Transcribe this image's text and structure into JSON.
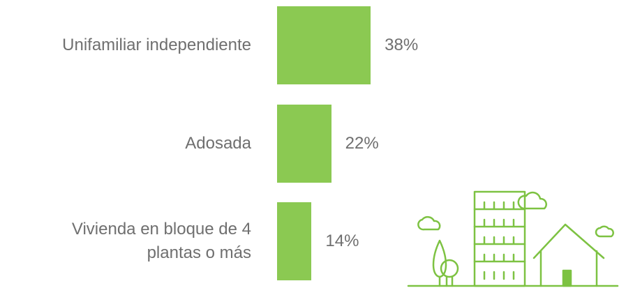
{
  "chart_data": {
    "type": "bar",
    "orientation": "horizontal",
    "categories": [
      "Unifamiliar independiente",
      "Adosada",
      "Vivienda en bloque de 4\nplantas o más"
    ],
    "values": [
      38,
      22,
      14
    ],
    "value_labels": [
      "38%",
      "22%",
      "14%"
    ],
    "color": "#8bc952"
  }
}
